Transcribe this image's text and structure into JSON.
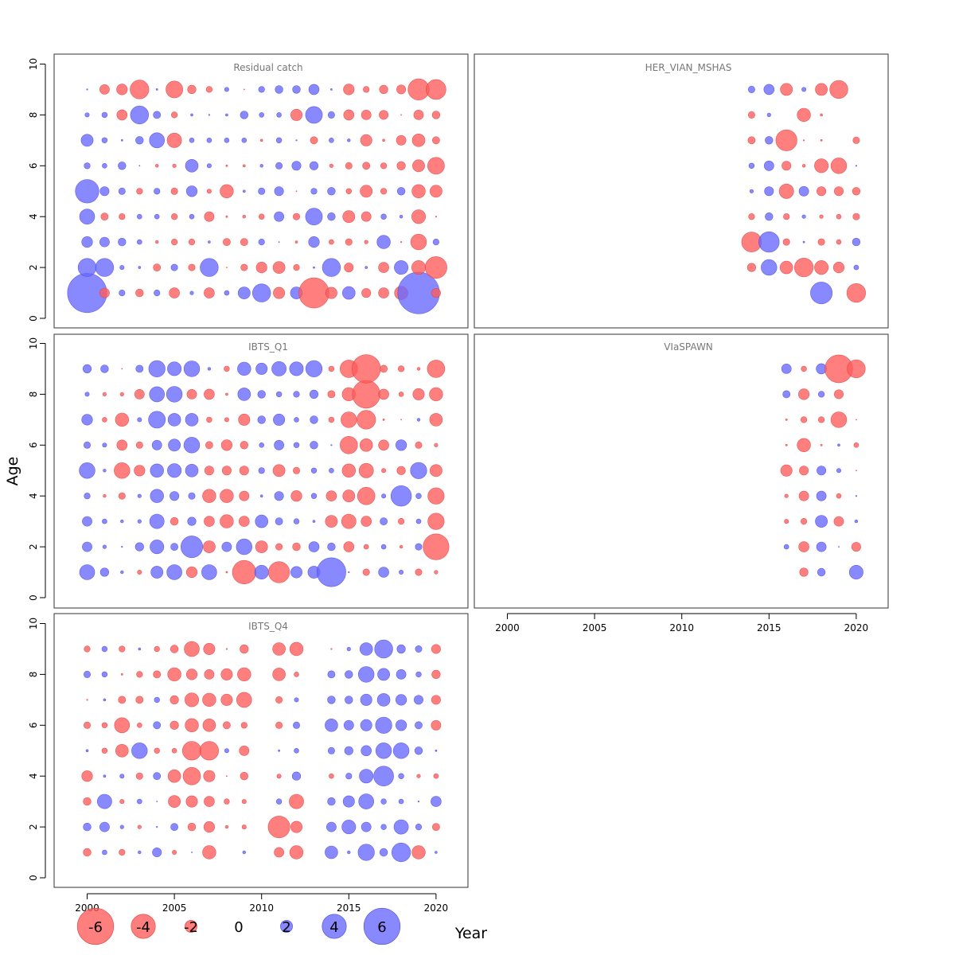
{
  "chart_data": {
    "type": "scatter",
    "subtype": "bubble",
    "xlabel": "Year",
    "ylabel": "Age",
    "xlim": [
      1998,
      2022
    ],
    "ylim": [
      0,
      10
    ],
    "x_ticks": [
      2000,
      2005,
      2010,
      2015,
      2020
    ],
    "y_ticks": [
      0,
      2,
      4,
      6,
      8,
      10
    ],
    "colors": {
      "negative": "#ff5a5a",
      "positive": "#6868ff"
    },
    "legend": [
      {
        "label": "-6",
        "value": -6
      },
      {
        "label": "-4",
        "value": -4
      },
      {
        "label": "-2",
        "value": -2
      },
      {
        "label": "0",
        "value": 0
      },
      {
        "label": "2",
        "value": 2
      },
      {
        "label": "4",
        "value": 4
      },
      {
        "label": "6",
        "value": 6
      }
    ],
    "panels": [
      {
        "title": "Residual catch",
        "years": [
          2000,
          2001,
          2002,
          2003,
          2004,
          2005,
          2006,
          2007,
          2008,
          2009,
          2010,
          2011,
          2012,
          2013,
          2014,
          2015,
          2016,
          2017,
          2018,
          2019,
          2020
        ],
        "ages": [
          1,
          2,
          3,
          4,
          5,
          6,
          7,
          8,
          9
        ],
        "residuals": [
          [
            6.5,
            -1.6,
            1.0,
            -1.3,
            1.0,
            -1.7,
            0.6,
            -1.7,
            0.8,
            2.0,
            3.0,
            -1.9,
            2.0,
            -5.0,
            -1.9,
            2.1,
            -1.5,
            -1.7,
            -2.2,
            6.9,
            -1.5
          ],
          [
            3.0,
            3.0,
            0.7,
            0.4,
            -1.2,
            1.1,
            -1.1,
            3.0,
            -0.1,
            -1.1,
            -1.8,
            -2.0,
            -1.0,
            0.3,
            3.0,
            -1.5,
            0.4,
            -1.7,
            2.3,
            -2.3,
            -3.6
          ],
          [
            1.8,
            1.6,
            1.3,
            0.8,
            -0.5,
            -1.0,
            -1.0,
            0.4,
            -1.2,
            -1.2,
            1.0,
            0.1,
            -0.4,
            1.8,
            -0.8,
            -1.1,
            -0.6,
            2.2,
            -0.2,
            -2.6,
            1.0
          ],
          [
            2.5,
            -1.2,
            -1.0,
            0.8,
            0.8,
            -1.0,
            0.8,
            -1.6,
            -0.3,
            -0.5,
            -0.9,
            1.6,
            -1.1,
            2.8,
            1.3,
            -2.0,
            -1.6,
            0.9,
            0.5,
            -2.3,
            -0.2
          ],
          [
            3.9,
            1.5,
            1.1,
            -1.0,
            1.0,
            -1.1,
            1.8,
            -0.7,
            -2.2,
            0.4,
            1.1,
            1.5,
            -0.1,
            1.0,
            1.3,
            -0.9,
            -2.0,
            -1.0,
            1.3,
            -2.2,
            -2.0
          ],
          [
            1.0,
            0.8,
            1.3,
            0.1,
            -0.5,
            -0.6,
            2.1,
            0.7,
            -0.3,
            -0.4,
            0.5,
            1.1,
            1.5,
            1.4,
            -0.6,
            -1.1,
            -1.2,
            -1.0,
            -1.4,
            -2.0,
            -2.8
          ],
          [
            2.0,
            0.9,
            0.3,
            1.3,
            2.5,
            -2.4,
            0.8,
            0.8,
            0.8,
            0.8,
            -0.4,
            0.9,
            0.2,
            -1.2,
            0.8,
            0.5,
            -1.9,
            -0.4,
            -1.6,
            -2.1,
            -1.2
          ],
          [
            0.7,
            0.9,
            -1.7,
            3.0,
            1.2,
            -1.0,
            0.4,
            0.2,
            0.4,
            1.3,
            0.8,
            0.8,
            -1.9,
            2.8,
            1.1,
            -1.7,
            -1.6,
            -1.5,
            -0.1,
            -1.6,
            -1.3
          ],
          [
            0.2,
            -1.6,
            -1.8,
            -3.1,
            0.3,
            -2.8,
            -1.4,
            -1.0,
            0.7,
            -0.1,
            1.0,
            1.3,
            1.3,
            1.7,
            0.3,
            -1.8,
            -1.0,
            -1.4,
            -1.5,
            -3.5,
            -3.3
          ]
        ]
      },
      {
        "title": "HER_VIAN_MSHAS",
        "years": [
          2014,
          2015,
          2016,
          2017,
          2018,
          2019,
          2020
        ],
        "ages": [
          1,
          2,
          3,
          4,
          5,
          6,
          7,
          8,
          9
        ],
        "residuals": [
          [
            null,
            null,
            null,
            null,
            3.6,
            null,
            -3.1
          ],
          [
            -1.4,
            2.6,
            -2.1,
            -3.1,
            -2.3,
            -1.8,
            0.8
          ],
          [
            -3.3,
            3.4,
            -1.1,
            0.3,
            -1.1,
            -0.8,
            1.3
          ],
          [
            -1.0,
            1.3,
            -1.0,
            0.6,
            -0.6,
            -0.8,
            -1.1
          ],
          [
            0.6,
            1.5,
            -2.4,
            1.6,
            -1.5,
            -1.5,
            -1.3
          ],
          [
            0.9,
            1.6,
            -1.5,
            -0.5,
            -2.3,
            -2.6,
            0.2
          ],
          [
            -1.2,
            1.3,
            -3.5,
            -0.2,
            -0.3,
            null,
            -1.1
          ],
          [
            -1.1,
            0.6,
            null,
            -2.2,
            -0.4,
            null,
            null
          ],
          [
            1.1,
            1.7,
            -2.0,
            0.7,
            -2.0,
            -3.0,
            null
          ]
        ]
      },
      {
        "title": "IBTS_Q1",
        "years": [
          2000,
          2001,
          2002,
          2003,
          2004,
          2005,
          2006,
          2007,
          2008,
          2009,
          2010,
          2011,
          2012,
          2013,
          2014,
          2015,
          2016,
          2017,
          2018,
          2019,
          2020
        ],
        "ages": [
          1,
          2,
          3,
          4,
          5,
          6,
          7,
          8,
          9
        ],
        "residuals": [
          [
            2.5,
            1.4,
            0.5,
            -0.7,
            2.0,
            2.5,
            -1.8,
            2.5,
            -0.3,
            -3.9,
            2.3,
            -3.5,
            1.9,
            2.0,
            4.8,
            0.2,
            -1.1,
            1.7,
            0.7,
            -1.1,
            -0.6
          ],
          [
            1.6,
            0.6,
            0.2,
            1.4,
            2.3,
            1.2,
            3.6,
            -2.0,
            1.6,
            2.6,
            -2.0,
            -1.1,
            -1.3,
            1.7,
            1.3,
            -1.7,
            -0.8,
            0.8,
            -0.5,
            1.1,
            -4.3
          ],
          [
            1.6,
            0.8,
            0.5,
            0.6,
            2.4,
            -1.3,
            1.4,
            -1.7,
            -2.2,
            -1.7,
            2.1,
            1.2,
            0.9,
            0.4,
            -2.0,
            -2.4,
            -1.7,
            1.2,
            -1.0,
            0.8,
            -2.7
          ],
          [
            1.0,
            -0.5,
            -1.1,
            0.6,
            2.2,
            1.5,
            1.1,
            -2.2,
            -2.2,
            -1.6,
            0.4,
            1.5,
            -1.8,
            0.9,
            -1.7,
            -2.0,
            -2.9,
            0.7,
            3.4,
            0.9,
            -2.7
          ],
          [
            2.6,
            0.5,
            -2.6,
            -1.8,
            2.2,
            2.3,
            2.1,
            -1.5,
            -1.5,
            -1.5,
            1.0,
            -2.0,
            -1.1,
            0.9,
            0.8,
            -2.2,
            -2.4,
            -0.7,
            -1.4,
            2.7,
            -2.0
          ],
          [
            1.1,
            0.7,
            -1.7,
            -1.1,
            1.6,
            2.0,
            2.6,
            -1.2,
            -1.8,
            -1.3,
            0.8,
            1.6,
            0.9,
            1.3,
            0.2,
            -2.9,
            -2.1,
            -1.7,
            1.8,
            -1.1,
            -0.6
          ],
          [
            1.8,
            -0.8,
            -2.2,
            0.7,
            2.8,
            2.1,
            2.1,
            -0.9,
            -0.7,
            -1.9,
            1.3,
            1.9,
            0.8,
            1.3,
            -0.9,
            -2.6,
            -3.1,
            -0.3,
            -0.1,
            0.5,
            -2.1
          ],
          [
            0.7,
            -0.6,
            -0.6,
            -1.6,
            2.5,
            2.6,
            -1.6,
            -1.7,
            -0.4,
            2.1,
            1.3,
            0.9,
            1.0,
            1.4,
            -1.2,
            -2.2,
            -4.6,
            -1.7,
            -0.8,
            -1.9,
            -2.2
          ],
          [
            1.4,
            1.3,
            -0.1,
            1.2,
            2.7,
            2.3,
            2.6,
            0.5,
            -0.9,
            2.2,
            1.9,
            2.4,
            2.3,
            2.7,
            -0.9,
            -2.9,
            -4.7,
            -1.2,
            -1.0,
            -0.5,
            -2.9
          ]
        ]
      },
      {
        "title": "VIaSPAWN",
        "years": [
          2016,
          2017,
          2018,
          2019,
          2020
        ],
        "ages": [
          1,
          2,
          3,
          4,
          5,
          6,
          7,
          8,
          9
        ],
        "residuals": [
          [
            null,
            -1.4,
            1.3,
            null,
            2.3
          ],
          [
            0.8,
            -1.7,
            1.6,
            0.1,
            -1.5
          ],
          [
            -0.7,
            -1.0,
            2.0,
            -1.6,
            0.5
          ],
          [
            -0.6,
            -1.6,
            1.6,
            -0.8,
            0.2
          ],
          [
            -1.9,
            -1.5,
            1.5,
            0.7,
            -0.1
          ],
          [
            -0.3,
            -2.2,
            -0.3,
            0.4,
            -0.8
          ],
          [
            -0.3,
            -1.0,
            -1.0,
            -2.6,
            -0.1
          ],
          [
            1.2,
            -1.8,
            1.0,
            -1.5,
            null
          ],
          [
            1.6,
            -0.9,
            1.7,
            -4.6,
            -3.0
          ]
        ]
      },
      {
        "title": "IBTS_Q4",
        "years": [
          2000,
          2001,
          2002,
          2003,
          2004,
          2005,
          2006,
          2007,
          2008,
          2009,
          2010,
          2011,
          2012,
          2013,
          2014,
          2015,
          2016,
          2017,
          2018,
          2019,
          2020
        ],
        "ages": [
          1,
          2,
          3,
          4,
          5,
          6,
          7,
          8,
          9
        ],
        "residuals": [
          [
            -1.3,
            0.8,
            -1.0,
            0.5,
            1.5,
            -0.7,
            0.1,
            -2.2,
            null,
            0.5,
            null,
            -1.6,
            -2.2,
            null,
            2.1,
            0.5,
            2.7,
            1.3,
            3.1,
            -2.2,
            0.4
          ],
          [
            1.3,
            1.6,
            0.6,
            -0.6,
            0.2,
            1.2,
            -1.3,
            -1.8,
            -0.5,
            -0.7,
            null,
            -3.6,
            -1.9,
            null,
            1.6,
            2.3,
            1.6,
            0.9,
            2.4,
            1.0,
            -1.2
          ],
          [
            -1.3,
            2.4,
            -0.7,
            0.8,
            0.1,
            -2.0,
            -1.9,
            -1.7,
            -0.9,
            -0.7,
            null,
            0.9,
            -2.4,
            null,
            1.3,
            1.9,
            2.5,
            0.9,
            0.8,
            0.2,
            1.7
          ],
          [
            -1.8,
            0.4,
            0.7,
            -1.1,
            1.2,
            -2.1,
            -2.9,
            -1.9,
            -0.1,
            -1.3,
            null,
            -0.7,
            1.4,
            null,
            -0.8,
            1.0,
            2.3,
            3.3,
            0.9,
            -0.6,
            -0.8
          ],
          [
            0.4,
            -0.9,
            -2.1,
            2.6,
            -0.9,
            -0.8,
            -3.1,
            -3.1,
            0.7,
            -1.6,
            null,
            0.3,
            0.8,
            null,
            1.1,
            1.4,
            1.7,
            2.6,
            2.6,
            1.3,
            0.3
          ],
          [
            -1.1,
            -0.9,
            -2.5,
            -0.8,
            1.2,
            -1.4,
            -2.2,
            -2.1,
            -1.2,
            -1.0,
            null,
            -1.1,
            1.1,
            null,
            2.1,
            1.6,
            1.9,
            2.7,
            1.8,
            1.2,
            -1.6
          ],
          [
            -0.2,
            0.4,
            -1.2,
            -1.2,
            0.9,
            -1.4,
            -2.3,
            -2.2,
            -1.9,
            -2.5,
            null,
            -1.1,
            0.7,
            null,
            1.3,
            1.3,
            1.9,
            2.1,
            1.8,
            1.5,
            -1.5
          ],
          [
            1.1,
            0.9,
            -0.3,
            -1.0,
            -1.2,
            -2.2,
            -1.8,
            -1.6,
            -1.9,
            -2.2,
            null,
            -2.1,
            -0.8,
            null,
            1.2,
            1.3,
            2.6,
            2.0,
            1.6,
            0.9,
            -1.4
          ],
          [
            -1.0,
            0.9,
            -1.0,
            0.4,
            -0.9,
            -1.3,
            -2.5,
            -1.9,
            -0.2,
            -1.4,
            null,
            -2.1,
            -2.2,
            null,
            -0.2,
            0.6,
            2.1,
            3.0,
            1.4,
            1.1,
            -1.5
          ]
        ]
      }
    ]
  }
}
